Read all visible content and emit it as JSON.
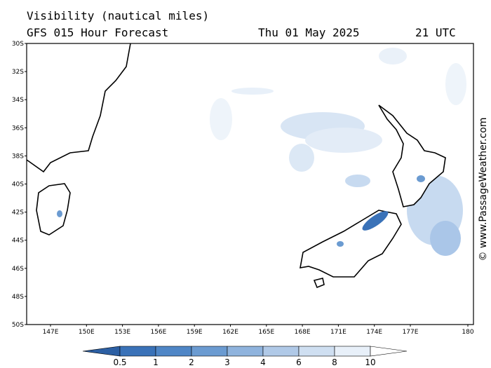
{
  "header": {
    "title": "Visibility (nautical miles)",
    "subtitle": "GFS 015 Hour Forecast",
    "date": "Thu 01 May 2025",
    "time": "21 UTC"
  },
  "lat_labels": [
    "30S",
    "32S",
    "34S",
    "36S",
    "38S",
    "40S",
    "42S",
    "44S",
    "46S",
    "48S",
    "50S"
  ],
  "lon_labels": [
    "147E",
    "150E",
    "153E",
    "156E",
    "159E",
    "162E",
    "165E",
    "168E",
    "171E",
    "174E",
    "177E",
    "180"
  ],
  "legend": {
    "labels": [
      "0.5",
      "1",
      "2",
      "3",
      "4",
      "6",
      "8",
      "10"
    ]
  },
  "credit": "© www.PassageWeather.com"
}
